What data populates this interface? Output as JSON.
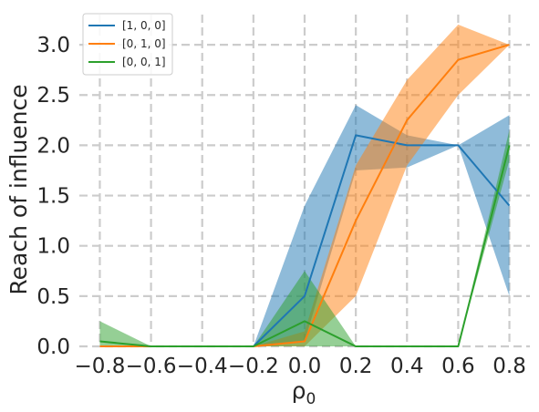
{
  "chart_data": {
    "type": "line",
    "xlabel": "ρ",
    "xlabel_subscript": "0",
    "ylabel": "Reach of influence",
    "x": [
      -0.8,
      -0.6,
      -0.4,
      -0.2,
      0.0,
      0.2,
      0.4,
      0.6,
      0.8
    ],
    "xticks": [
      -0.8,
      -0.6,
      -0.4,
      -0.2,
      0.0,
      0.2,
      0.4,
      0.6,
      0.8
    ],
    "xtick_labels": [
      "−0.8",
      "−0.6",
      "−0.4",
      "−0.2",
      "0.0",
      "0.2",
      "0.4",
      "0.6",
      "0.8"
    ],
    "yticks": [
      0.0,
      0.5,
      1.0,
      1.5,
      2.0,
      2.5,
      3.0
    ],
    "ytick_labels": [
      "0.0",
      "0.5",
      "1.0",
      "1.5",
      "2.0",
      "2.5",
      "3.0"
    ],
    "xlim": [
      -0.88,
      0.88
    ],
    "ylim": [
      0,
      3.3
    ],
    "grid": true,
    "legend_position": "top-left",
    "series": [
      {
        "name": "[1, 0, 0]",
        "color": "#1f77b4",
        "values": [
          0,
          0,
          0,
          0,
          0.5,
          2.1,
          2.0,
          2.0,
          1.4
        ],
        "lower": [
          0,
          0,
          0,
          0,
          0.05,
          1.75,
          1.78,
          2.0,
          0.5
        ],
        "upper": [
          0,
          0,
          0,
          0,
          1.4,
          2.4,
          2.1,
          2.0,
          2.3
        ]
      },
      {
        "name": "[0, 1, 0]",
        "color": "#ff7f0e",
        "values": [
          0,
          0,
          0,
          0,
          0.05,
          1.25,
          2.25,
          2.85,
          3.0
        ],
        "lower": [
          0,
          0,
          0,
          0,
          0.0,
          0.5,
          1.8,
          2.5,
          3.0
        ],
        "upper": [
          0,
          0,
          0,
          0,
          0.15,
          1.8,
          2.65,
          3.2,
          3.0
        ]
      },
      {
        "name": "[0, 0, 1]",
        "color": "#2ca02c",
        "values": [
          0.05,
          0,
          0,
          0,
          0.25,
          0,
          0,
          0,
          2.0
        ],
        "lower": [
          0,
          0,
          0,
          0,
          0,
          0,
          0,
          0,
          1.85
        ],
        "upper": [
          0.25,
          0,
          0,
          0,
          0.75,
          0,
          0,
          0,
          2.15
        ]
      }
    ]
  }
}
